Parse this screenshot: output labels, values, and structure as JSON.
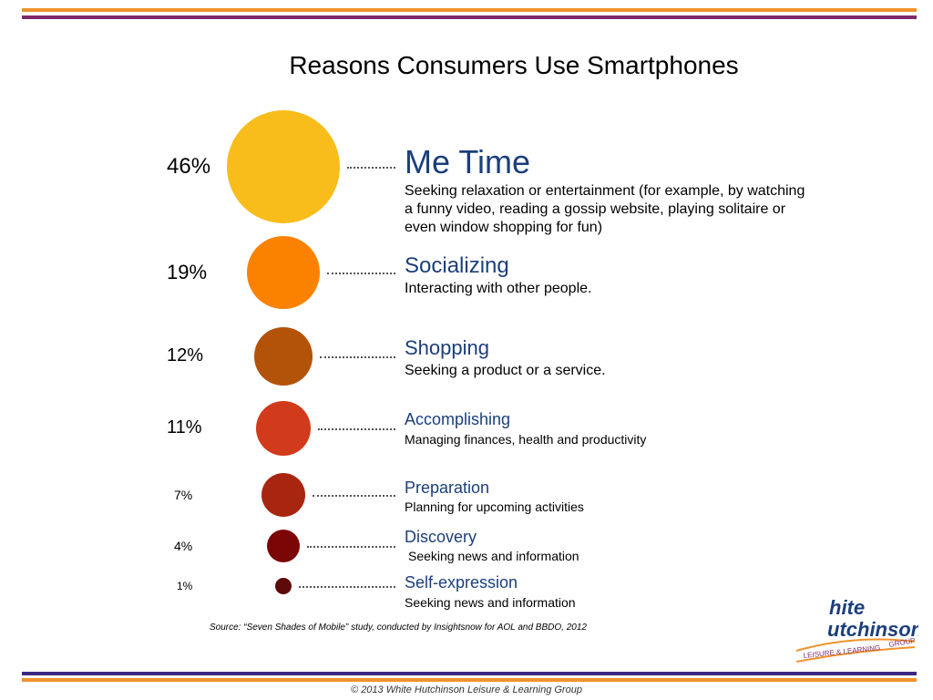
{
  "title": "Reasons Consumers Use Smartphones",
  "chart_data": {
    "type": "bubble",
    "title": "Reasons Consumers Use Smartphones",
    "categories": [
      "Me Time",
      "Socializing",
      "Shopping",
      "Accomplishing",
      "Preparation",
      "Discovery",
      "Self-expression"
    ],
    "values": [
      46,
      19,
      12,
      11,
      7,
      4,
      1
    ],
    "value_labels": [
      "46%",
      "19%",
      "12%",
      "11%",
      "7%",
      "4%",
      "1%"
    ],
    "descriptions": [
      "Seeking relaxation or entertainment (for example, by watching a funny video, reading a gossip website, playing solitaire or even window shopping for fun)",
      "Interacting with other people.",
      "Seeking a product or a service.",
      "Managing finances, health and productivity",
      "Planning for upcoming activities",
      "Seeking news and information",
      "Seeking news and information"
    ],
    "colors": [
      "#f8bd1a",
      "#fb8200",
      "#b35309",
      "#d13a1a",
      "#a8260f",
      "#7c0606",
      "#5e0a0a"
    ]
  },
  "source": "Source: “Seven Shades of Mobile” study, conducted by Insightsnow for AOL and BBDO, 2012",
  "logo": {
    "line1": "hite",
    "line2": "utchinson",
    "tagline": "LEISURE & LEARNING",
    "group": "GROUP"
  },
  "copyright": "© 2013 White Hutchinson Leisure & Learning Group"
}
